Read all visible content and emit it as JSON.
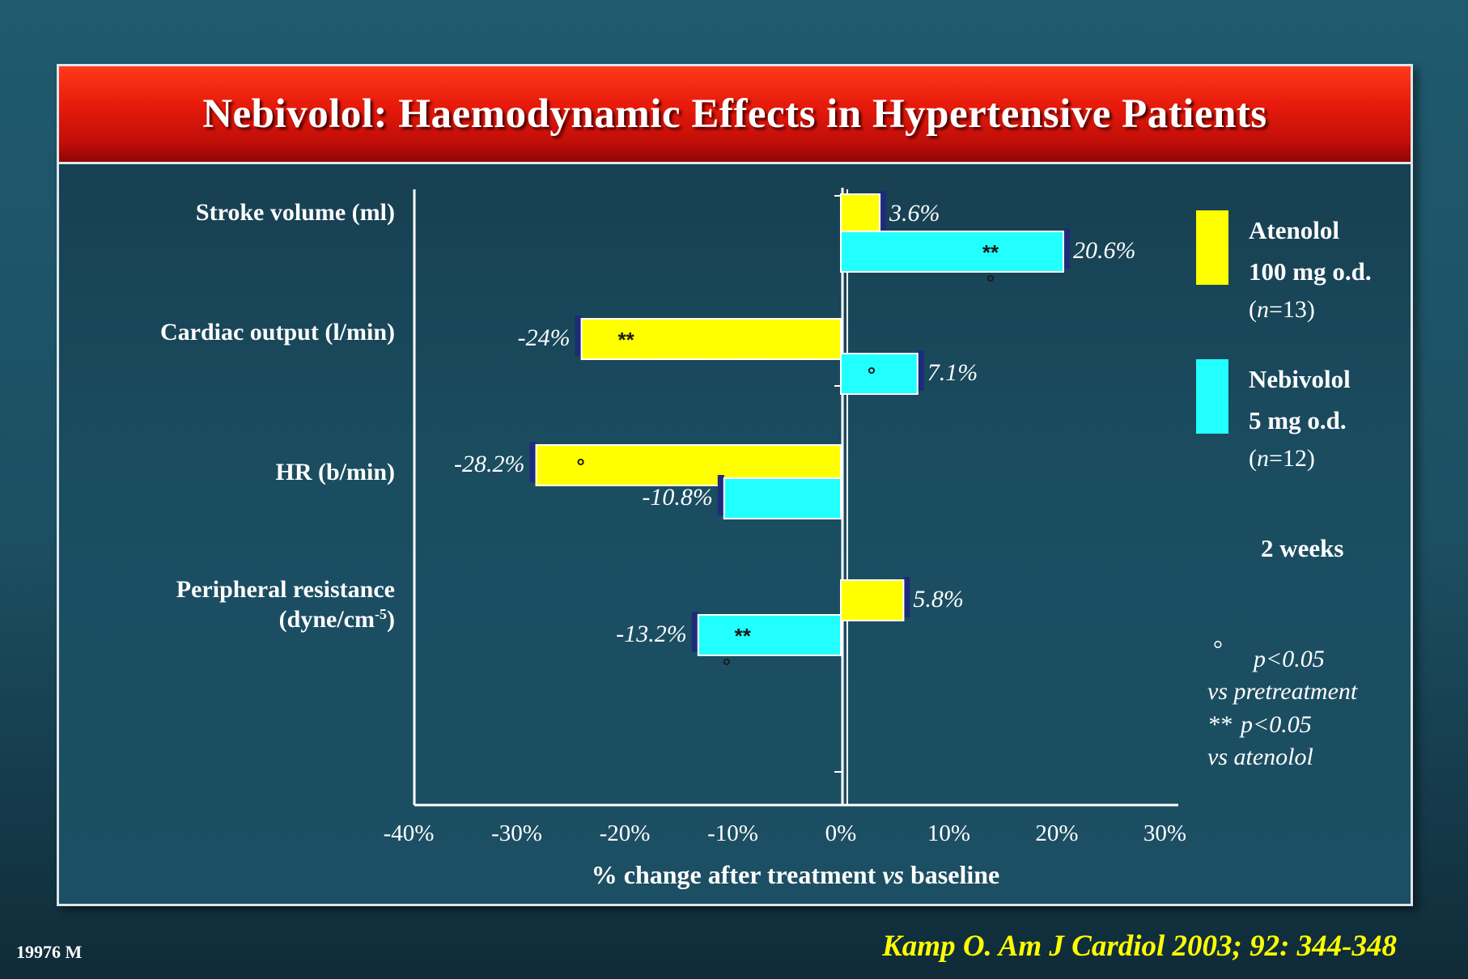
{
  "slide": {
    "title": "Nebivolol: Haemodynamic Effects in Hypertensive Patients",
    "slide_code": "19976 M",
    "citation": "Kamp O. Am J Cardiol 2003; 92: 344-348"
  },
  "legend": {
    "items": [
      {
        "line1": "Atenolol",
        "line2": "100 mg o.d.",
        "n_prefix": "(",
        "n_var": "n",
        "n_suffix": "=13)",
        "color": "#ffff00"
      },
      {
        "line1": "Nebivolol",
        "line2": "5 mg o.d.",
        "n_prefix": "(",
        "n_var": "n",
        "n_suffix": "=12)",
        "color": "#22ffff"
      }
    ],
    "duration": "2 weeks"
  },
  "notes": {
    "single_mark": "°",
    "line1": "p<0.05",
    "line2": "vs pretreatment",
    "double_mark": "**",
    "line3": "p<0.05",
    "line4": "vs atenolol"
  },
  "chart_data": {
    "type": "bar",
    "orientation": "horizontal",
    "categories": [
      "Stroke volume (ml)",
      "Cardiac output (l/min)",
      "HR (b/min)",
      "Peripheral resistance"
    ],
    "category_sublabels": [
      "",
      "",
      "",
      "(dyne/cm-5)"
    ],
    "series": [
      {
        "name": "Atenolol 100 mg o.d. (n=13)",
        "color": "#ffff00",
        "values": [
          3.6,
          -24,
          -28.2,
          5.8
        ],
        "labels": [
          "3.6%",
          "-24%",
          "-28.2%",
          "5.8%"
        ],
        "markers": [
          "",
          "**",
          "°",
          ""
        ]
      },
      {
        "name": "Nebivolol 5 mg o.d. (n=12)",
        "color": "#22ffff",
        "values": [
          20.6,
          7.1,
          -10.8,
          -13.2
        ],
        "labels": [
          "20.6%",
          "7.1%",
          "-10.8%",
          "-13.2%"
        ],
        "markers": [
          "**",
          "°",
          "",
          "**"
        ],
        "below_markers": [
          "°",
          "",
          "",
          "°"
        ]
      }
    ],
    "xlim": [
      -40,
      30
    ],
    "xticks": [
      -40,
      -30,
      -20,
      -10,
      0,
      10,
      20,
      30
    ],
    "xtick_labels": [
      "-40%",
      "-30%",
      "-20%",
      "-10%",
      "0%",
      "10%",
      "20%",
      "30%"
    ],
    "xlabel_parts": [
      "% change after treatment ",
      "vs",
      " baseline"
    ],
    "grid": false,
    "legend_position": "right"
  }
}
